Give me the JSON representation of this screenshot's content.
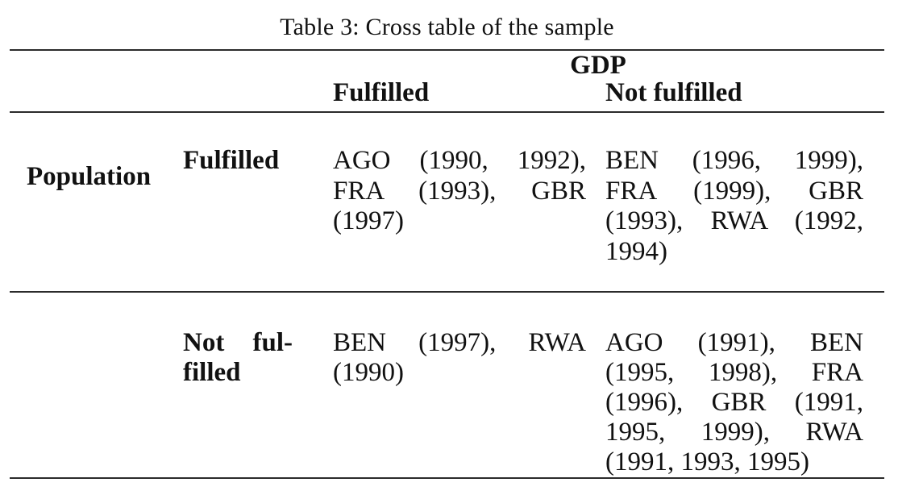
{
  "caption": "Table 3: Cross table of the sample",
  "colors": {
    "text": "#111111",
    "rule": "#2b2b2b",
    "background": "#ffffff"
  },
  "columns": {
    "group_header": "GDP",
    "fulfilled": "Fulfilled",
    "not_fulfilled": "Not fulfilled"
  },
  "row_group": {
    "label": "Population"
  },
  "rows": [
    {
      "sub_header_lines": [
        "Fulfilled"
      ],
      "gdp_fulfilled_lines": [
        "AGO (1990, 1992),",
        "FRA (1993), GBR",
        "(1997)"
      ],
      "gdp_not_fulfilled_lines": [
        "BEN (1996, 1999),",
        "FRA (1999), GBR",
        "(1993), RWA (1992,",
        "1994)"
      ]
    },
    {
      "sub_header_lines": [
        "Not ful-",
        "filled"
      ],
      "gdp_fulfilled_lines": [
        "BEN (1997), RWA",
        "(1990)"
      ],
      "gdp_not_fulfilled_lines": [
        "AGO (1991), BEN",
        "(1995, 1998), FRA",
        "(1996), GBR (1991,",
        "1995, 1999), RWA",
        "(1991, 1993, 1995)"
      ]
    }
  ]
}
